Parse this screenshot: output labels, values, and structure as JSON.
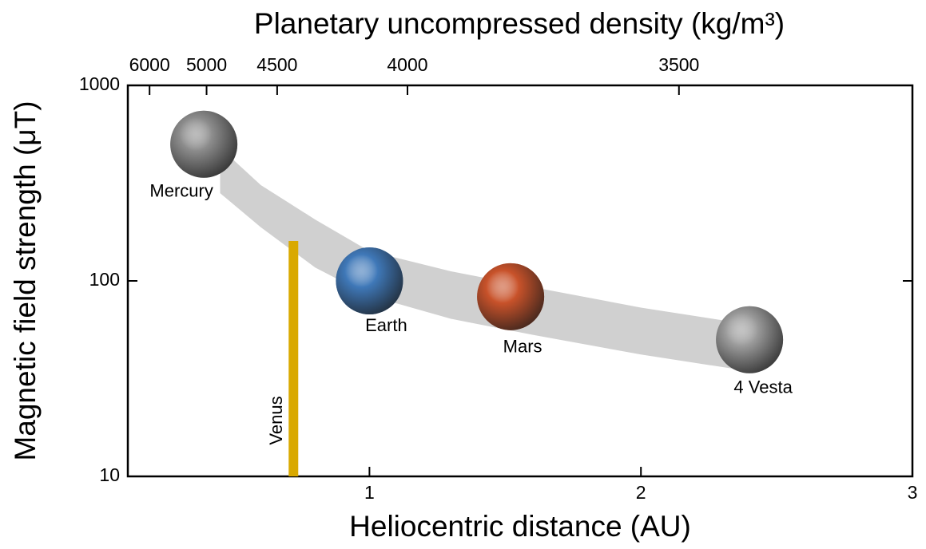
{
  "chart_data": {
    "type": "scatter",
    "title": "Planetary uncompressed density (kg/m³)",
    "x_label": "Heliocentric distance (AU)",
    "y_label": "Magnetic field strength (μT)",
    "xlim": [
      0.11,
      3
    ],
    "xticks": [
      1,
      2,
      3
    ],
    "ylim": [
      10,
      1000
    ],
    "yscale": "log",
    "yticks": [
      10,
      100,
      1000
    ],
    "x2ticks": [
      {
        "value": 6000,
        "x": 0.19
      },
      {
        "value": 5000,
        "x": 0.4
      },
      {
        "value": 4500,
        "x": 0.66
      },
      {
        "value": 4000,
        "x": 1.14
      },
      {
        "value": 3500,
        "x": 2.14
      }
    ],
    "band": {
      "color": "#d0d0d0",
      "x": [
        0.45,
        0.6,
        0.8,
        1.0,
        1.3,
        1.6,
        2.0,
        2.43
      ],
      "upper": [
        480,
        309,
        206,
        142,
        112,
        93,
        73,
        59
      ],
      "lower": [
        281,
        188,
        117,
        84,
        64,
        53,
        42,
        34
      ]
    },
    "series": [
      {
        "name": "Mercury",
        "marker": "sphere",
        "color": "#8c8c8c",
        "label_color": "#444444",
        "x": [
          0.39
        ],
        "values": [
          500
        ]
      },
      {
        "name": "Venus",
        "marker": "bar",
        "color": "#d9a900",
        "label_color": "#d9a900",
        "x": [
          0.72
        ],
        "values": [
          160
        ]
      },
      {
        "name": "Earth",
        "marker": "sphere",
        "color": "#3f78b8",
        "label_color": "#1a63c9",
        "x": [
          1.0
        ],
        "values": [
          100
        ]
      },
      {
        "name": "Mars",
        "marker": "sphere",
        "color": "#c8522a",
        "label_color": "#8b1a12",
        "x": [
          1.52
        ],
        "values": [
          83
        ]
      },
      {
        "name": "4 Vesta",
        "marker": "sphere",
        "color": "#9a9a9a",
        "label_color": "#777777",
        "x": [
          2.4
        ],
        "values": [
          50
        ]
      }
    ]
  }
}
